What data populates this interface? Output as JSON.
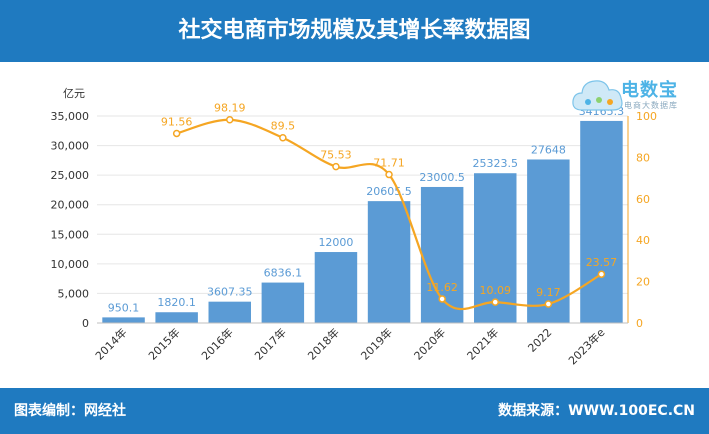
{
  "header": {
    "title": "社交电商市场规模及其增长率数据图"
  },
  "footer": {
    "left": "图表编制：网经社",
    "right": "数据来源：WWW.100EC.CN"
  },
  "logo": {
    "main": "电数宝",
    "sub": "电商大数据库"
  },
  "colors": {
    "header_bg": "#1f7ac0",
    "bar": "#5b9bd5",
    "line": "#f5a623",
    "bar_label": "#5b9bd5",
    "line_label": "#f5a623"
  },
  "chart_data": {
    "type": "bar",
    "categories": [
      "2014年",
      "2015年",
      "2016年",
      "2017年",
      "2018年",
      "2019年",
      "2020年",
      "2021年",
      "2022",
      "2023年e"
    ],
    "series": [
      {
        "values": [
          950.1,
          1820.1,
          3607.35,
          6836.1,
          12000,
          20605.5,
          23000.5,
          25323.5,
          27648,
          34165.3
        ],
        "labels": [
          "950.1",
          "1820.1",
          "3607.35",
          "6836.1",
          "12000",
          "20605.5",
          "23000.5",
          "25323.5",
          "27648",
          "34165.3"
        ]
      },
      {
        "type": "line",
        "axis": "right",
        "values": [
          null,
          91.56,
          98.19,
          89.5,
          75.53,
          71.71,
          11.62,
          10.09,
          9.17,
          23.57
        ],
        "labels": [
          "",
          "91.56",
          "98.19",
          "89.5",
          "75.53",
          "71.71",
          "11.62",
          "10.09",
          "9.17",
          "23.57"
        ]
      }
    ],
    "y_unit": "亿元",
    "ylim": [
      0,
      35000
    ],
    "yticks": [
      "0",
      "5,000",
      "10,000",
      "15,000",
      "20,000",
      "25,000",
      "30,000",
      "35,000"
    ],
    "y2lim": [
      0,
      100
    ],
    "y2ticks": [
      "0",
      "20",
      "40",
      "60",
      "80",
      "100"
    ],
    "grid": true
  }
}
